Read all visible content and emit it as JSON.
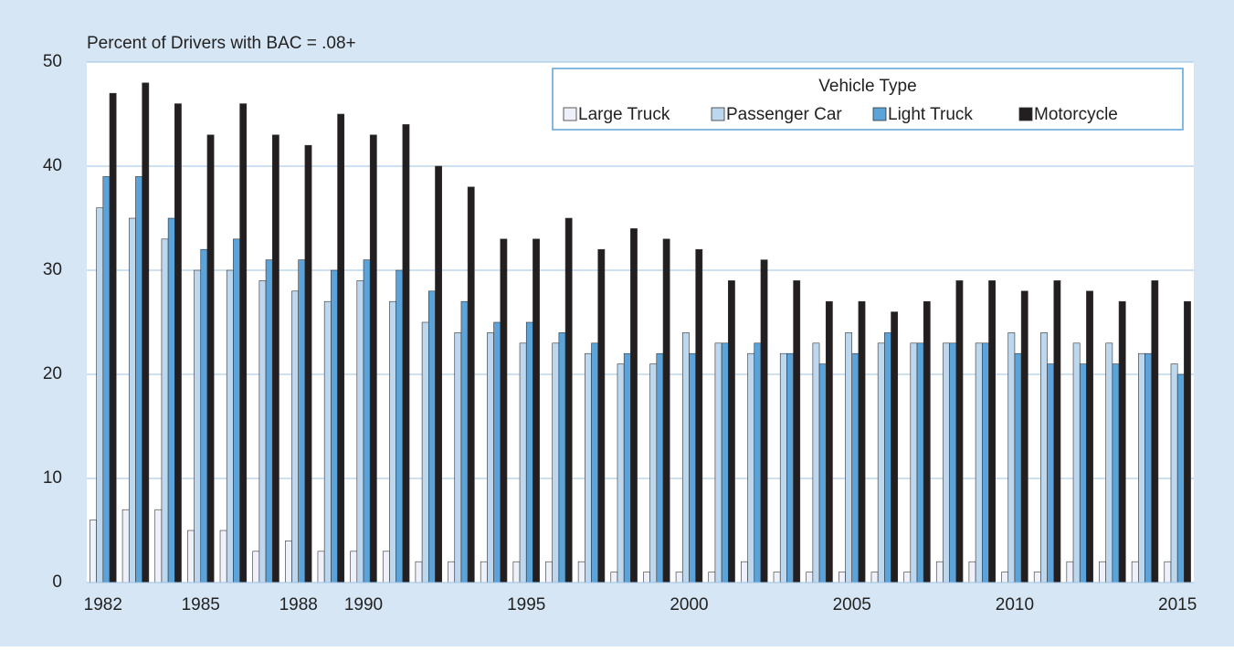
{
  "chart_data": {
    "type": "bar",
    "title": "Percent of Drivers with BAC = .08+",
    "legend_title": "Vehicle Type",
    "legend_position": "upper right",
    "grid": true,
    "categories": [
      "1982",
      null,
      null,
      "1985",
      null,
      null,
      "1988",
      null,
      "1990",
      null,
      null,
      null,
      null,
      "1995",
      null,
      null,
      null,
      null,
      "2000",
      null,
      null,
      null,
      null,
      "2005",
      null,
      null,
      null,
      null,
      "2010",
      null,
      null,
      null,
      null,
      "2015"
    ],
    "ylim": [
      0,
      50
    ],
    "yticks": [
      0,
      10,
      20,
      30,
      40,
      50
    ],
    "series": [
      {
        "name": "Large Truck",
        "color": "#eef0fa",
        "values": [
          6,
          7,
          7,
          5,
          5,
          3,
          4,
          3,
          3,
          3,
          2,
          2,
          2,
          2,
          2,
          2,
          1,
          1,
          1,
          1,
          2,
          1,
          1,
          1,
          1,
          1,
          2,
          2,
          1,
          1,
          2,
          2,
          2,
          2
        ]
      },
      {
        "name": "Passenger Car",
        "color": "#bdd7ee",
        "values": [
          36,
          35,
          33,
          30,
          30,
          29,
          28,
          27,
          29,
          27,
          25,
          24,
          24,
          23,
          23,
          22,
          21,
          21,
          24,
          23,
          22,
          22,
          23,
          24,
          23,
          23,
          23,
          23,
          24,
          24,
          23,
          23,
          22,
          21
        ]
      },
      {
        "name": "Light Truck",
        "color": "#5ba3d9",
        "values": [
          39,
          39,
          35,
          32,
          33,
          31,
          31,
          30,
          31,
          30,
          28,
          27,
          25,
          25,
          24,
          23,
          22,
          22,
          22,
          23,
          23,
          22,
          21,
          22,
          24,
          23,
          23,
          23,
          22,
          21,
          21,
          21,
          22,
          20
        ]
      },
      {
        "name": "Motorcycle",
        "color": "#231f20",
        "values": [
          47,
          48,
          46,
          43,
          46,
          43,
          42,
          45,
          43,
          44,
          40,
          38,
          33,
          33,
          35,
          32,
          34,
          33,
          32,
          29,
          31,
          29,
          27,
          27,
          26,
          27,
          29,
          29,
          28,
          29,
          28,
          27,
          29,
          27
        ]
      }
    ]
  }
}
